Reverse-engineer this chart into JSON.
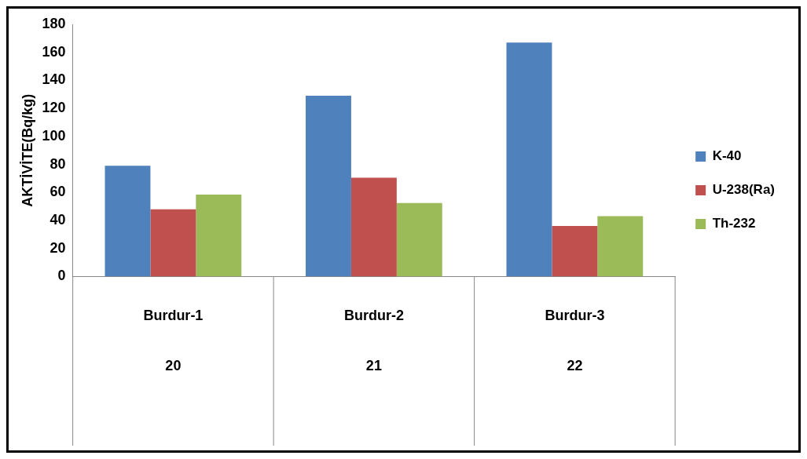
{
  "chart_data": {
    "type": "bar",
    "ylabel": "AKTİVİTE(Bq/kg)",
    "categories": [
      "Burdur-1",
      "Burdur-2",
      "Burdur-3"
    ],
    "series": [
      {
        "name": "K-40",
        "color": "#4f81bd",
        "values": [
          79,
          129,
          167
        ]
      },
      {
        "name": "U-238(Ra)",
        "color": "#c0504d",
        "values": [
          48,
          70.5,
          36
        ]
      },
      {
        "name": "Th-232",
        "color": "#9bbb59",
        "values": [
          58.5,
          52.5,
          43
        ]
      }
    ],
    "annotations": [
      "20",
      "21",
      "22"
    ],
    "ylim": [
      0,
      180
    ],
    "yticks": [
      0,
      20,
      40,
      60,
      80,
      100,
      120,
      140,
      160,
      180
    ],
    "grid": false,
    "legend": "right"
  }
}
